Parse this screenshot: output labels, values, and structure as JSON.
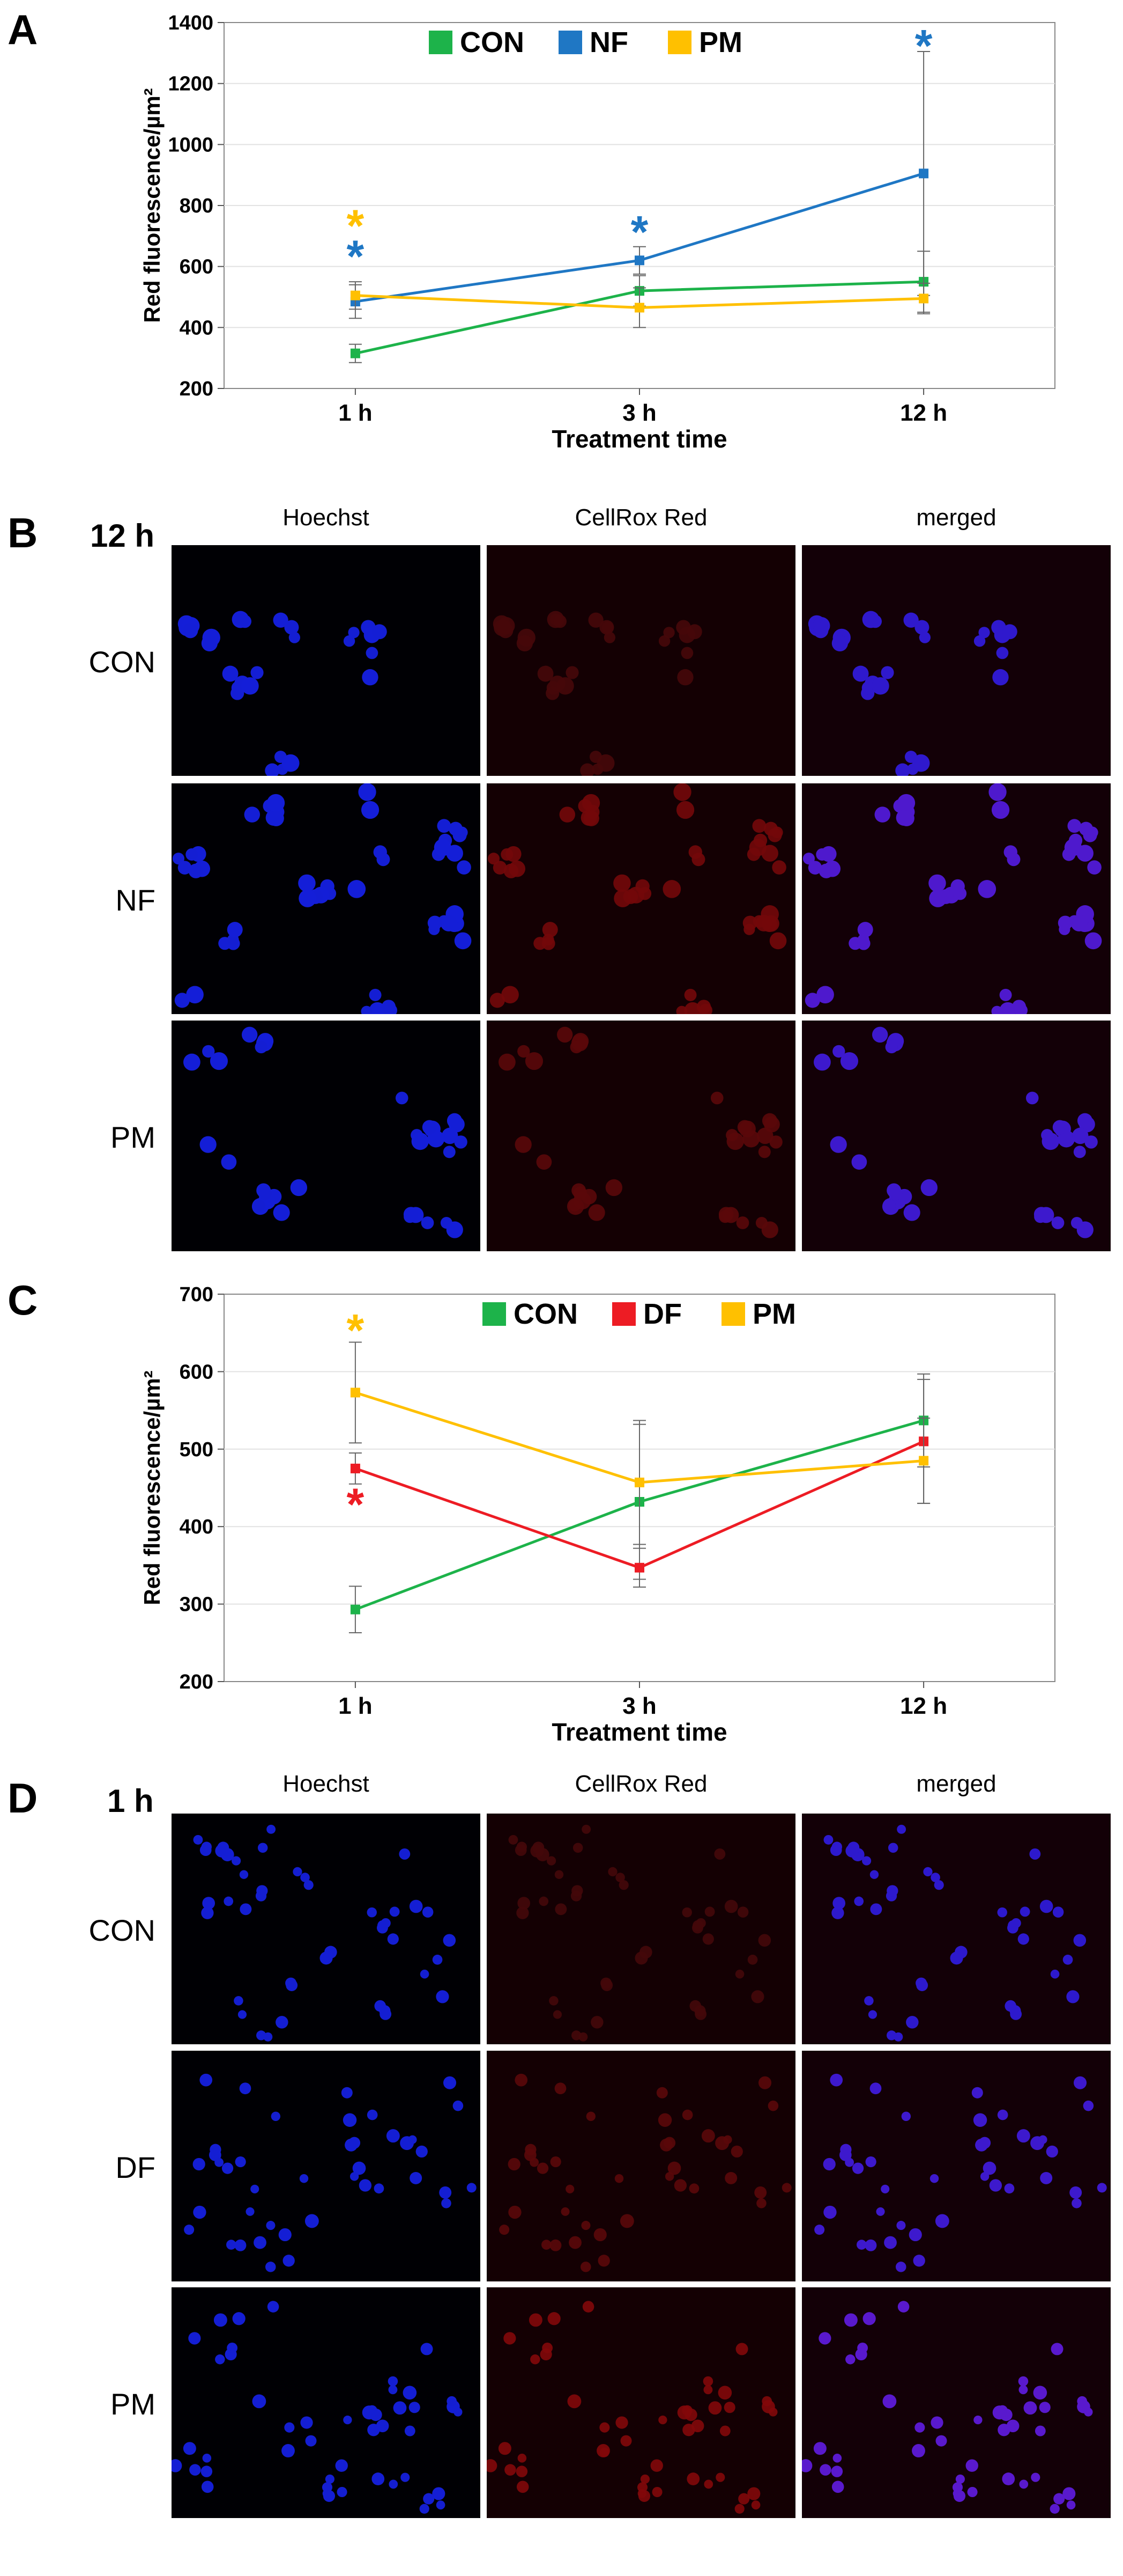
{
  "panels": {
    "A": "A",
    "B": "B",
    "C": "C",
    "D": "D"
  },
  "chart_data": [
    {
      "type": "line",
      "title": "",
      "xlabel": "Treatment time",
      "ylabel": "Red fluorescence/µm²",
      "categories": [
        "1 h",
        "3 h",
        "12 h"
      ],
      "ylim": [
        200,
        1400
      ],
      "yticks": [
        200,
        400,
        600,
        800,
        1000,
        1200,
        1400
      ],
      "legend_position": "top",
      "grid": true,
      "series": [
        {
          "name": "CON",
          "color": "#1db34a",
          "values": [
            315,
            520,
            550
          ],
          "errors": [
            30,
            50,
            100
          ]
        },
        {
          "name": "NF",
          "color": "#1f77c4",
          "values": [
            485,
            620,
            905
          ],
          "errors": [
            55,
            45,
            400
          ]
        },
        {
          "name": "PM",
          "color": "#ffc000",
          "values": [
            505,
            465,
            495
          ],
          "errors": [
            45,
            65,
            50
          ]
        }
      ],
      "annotations": [
        {
          "text": "*",
          "category": "1 h",
          "y": 750,
          "color": "#ffc000"
        },
        {
          "text": "*",
          "category": "1 h",
          "y": 650,
          "color": "#1f77c4"
        },
        {
          "text": "*",
          "category": "3 h",
          "y": 730,
          "color": "#1f77c4"
        },
        {
          "text": "*",
          "category": "12 h",
          "y": 1340,
          "color": "#1f77c4"
        }
      ]
    },
    {
      "type": "line",
      "title": "",
      "xlabel": "Treatment time",
      "ylabel": "Red fluorescence/µm²",
      "categories": [
        "1 h",
        "3 h",
        "12 h"
      ],
      "ylim": [
        200,
        700
      ],
      "yticks": [
        200,
        300,
        400,
        500,
        600,
        700
      ],
      "legend_position": "top",
      "grid": true,
      "series": [
        {
          "name": "CON",
          "color": "#1db34a",
          "values": [
            293,
            432,
            537
          ],
          "errors": [
            30,
            100,
            60
          ]
        },
        {
          "name": "DF",
          "color": "#ed1c24",
          "values": [
            475,
            347,
            510
          ],
          "errors": [
            20,
            25,
            80
          ]
        },
        {
          "name": "PM",
          "color": "#ffc000",
          "values": [
            573,
            457,
            485
          ],
          "errors": [
            65,
            80,
            55
          ]
        }
      ],
      "annotations": [
        {
          "text": "*",
          "category": "1 h",
          "y": 660,
          "color": "#ffc000"
        },
        {
          "text": "*",
          "category": "1 h",
          "y": 435,
          "color": "#ed1c24"
        }
      ]
    }
  ],
  "micrographs_B": {
    "time": "12 h",
    "columns": [
      "Hoechst",
      "CellRox Red",
      "merged"
    ],
    "rows": [
      "CON",
      "NF",
      "PM"
    ]
  },
  "micrographs_D": {
    "time": "1 h",
    "columns": [
      "Hoechst",
      "CellRox Red",
      "merged"
    ],
    "rows": [
      "CON",
      "DF",
      "PM"
    ]
  }
}
